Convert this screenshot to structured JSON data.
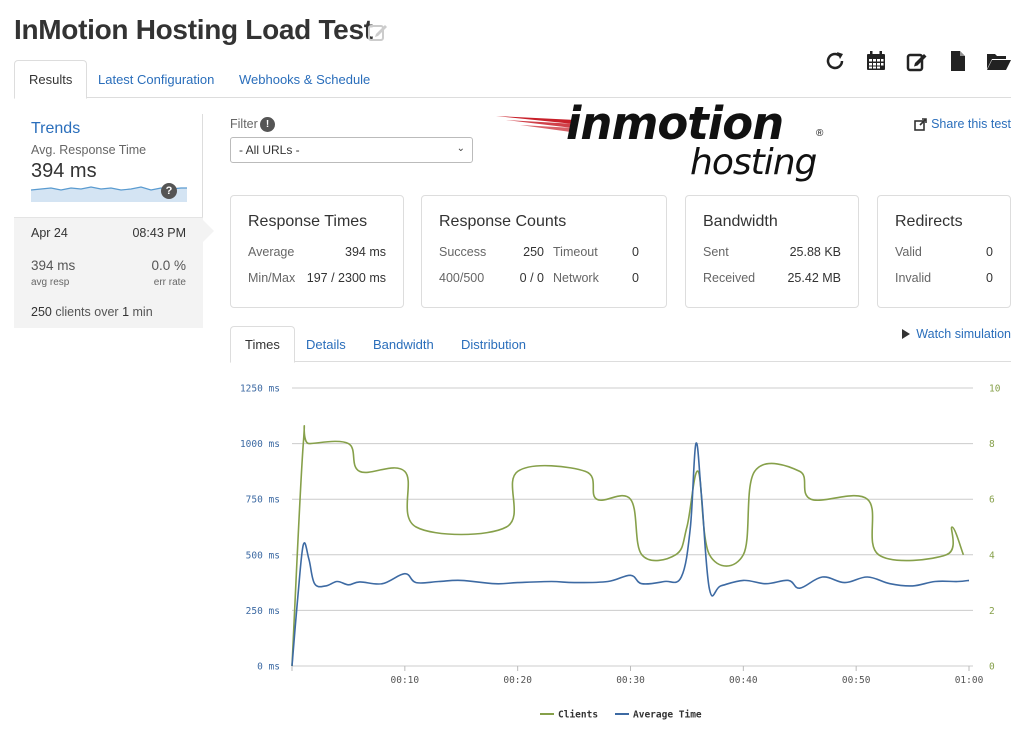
{
  "title": "InMotion Hosting Load Test",
  "toolbar": [
    {
      "name": "refresh-icon"
    },
    {
      "name": "calendar-icon"
    },
    {
      "name": "edit-icon"
    },
    {
      "name": "document-icon"
    },
    {
      "name": "folder-open-icon"
    }
  ],
  "tabs": [
    {
      "label": "Results",
      "active": true
    },
    {
      "label": "Latest Configuration",
      "active": false
    },
    {
      "label": "Webhooks & Schedule",
      "active": false
    }
  ],
  "sidebar": {
    "heading": "Trends",
    "metric_label": "Avg. Response Time",
    "metric_value": "394 ms",
    "help": "?",
    "run": {
      "date": "Apr 24",
      "time": "08:43 PM",
      "resp_value": "394 ms",
      "resp_label": "avg resp",
      "err_value": "0.0 %",
      "err_label": "err rate",
      "clients_count": "250",
      "clients_mid": "clients over",
      "clients_duration": "1",
      "clients_unit": "min"
    }
  },
  "filter": {
    "label": "Filter",
    "info": "!",
    "selected": "- All URLs -"
  },
  "logo": {
    "top": "inmotion",
    "bottom": "hosting",
    "reg": "®"
  },
  "share_label": "Share this test",
  "stats": {
    "response_times": {
      "title": "Response Times",
      "average_label": "Average",
      "average_value": "394 ms",
      "minmax_label": "Min/Max",
      "minmax_value": "197 / 2300 ms"
    },
    "response_counts": {
      "title": "Response Counts",
      "success_label": "Success",
      "success_value": "250",
      "timeout_label": "Timeout",
      "timeout_value": "0",
      "r400_label": "400/500",
      "r400_value": "0 / 0",
      "network_label": "Network",
      "network_value": "0"
    },
    "bandwidth": {
      "title": "Bandwidth",
      "sent_label": "Sent",
      "sent_value": "25.88 KB",
      "received_label": "Received",
      "received_value": "25.42 MB"
    },
    "redirects": {
      "title": "Redirects",
      "valid_label": "Valid",
      "valid_value": "0",
      "invalid_label": "Invalid",
      "invalid_value": "0"
    }
  },
  "subtabs": [
    {
      "label": "Times",
      "active": true
    },
    {
      "label": "Details",
      "active": false
    },
    {
      "label": "Bandwidth",
      "active": false
    },
    {
      "label": "Distribution",
      "active": false
    }
  ],
  "watch_label": "Watch simulation",
  "colors": {
    "clients": "#86a04a",
    "avg": "#3d6aa3",
    "link": "#2a6ebb"
  },
  "chart_data": {
    "type": "line",
    "xlabel": "",
    "ylabel": "",
    "x_ticks": [
      "00:10",
      "00:20",
      "00:30",
      "00:40",
      "00:50",
      "01:00"
    ],
    "xlim": [
      0,
      60
    ],
    "y_left_ticks": [
      "0 ms",
      "250 ms",
      "500 ms",
      "750 ms",
      "1000 ms",
      "1250 ms"
    ],
    "y_left_lim": [
      0,
      1250
    ],
    "y_right_ticks": [
      "0",
      "2",
      "4",
      "6",
      "8",
      "10"
    ],
    "y_right_lim": [
      0,
      10
    ],
    "grid": true,
    "legend": "bottom-center",
    "series": [
      {
        "name": "Clients",
        "axis": "right",
        "color": "#86a04a",
        "x": [
          0,
          1,
          1.5,
          5,
          6,
          10,
          11,
          19,
          20,
          26,
          27,
          30,
          31,
          34,
          35,
          36,
          37,
          40,
          41,
          45,
          46,
          51,
          52,
          58,
          58.5,
          59.5
        ],
        "y": [
          0,
          8,
          8,
          8,
          7,
          7,
          5,
          5,
          7,
          7,
          6,
          6,
          4,
          4,
          5,
          7,
          4,
          4,
          7,
          7,
          6,
          6,
          4,
          4,
          5,
          4
        ]
      },
      {
        "name": "Average Time",
        "axis": "left",
        "color": "#3d6aa3",
        "x": [
          0,
          0.5,
          1,
          1.5,
          2,
          3,
          4,
          5,
          6,
          8,
          10,
          11,
          13,
          15,
          18,
          20,
          23,
          25,
          28,
          30,
          31,
          33,
          34.5,
          35.3,
          35.8,
          36.3,
          37,
          38,
          40,
          42,
          44,
          45,
          47,
          49,
          51,
          53,
          55,
          57,
          59,
          60
        ],
        "y": [
          0,
          300,
          545,
          480,
          370,
          360,
          380,
          365,
          378,
          370,
          415,
          375,
          380,
          385,
          370,
          375,
          380,
          375,
          380,
          408,
          370,
          380,
          400,
          620,
          1000,
          760,
          345,
          360,
          385,
          370,
          385,
          350,
          400,
          375,
          400,
          370,
          360,
          380,
          380,
          385
        ]
      }
    ]
  }
}
